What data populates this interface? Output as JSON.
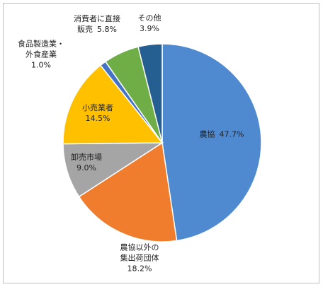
{
  "chart_data": {
    "type": "pie",
    "categories": [
      "農協",
      "農協以外の\n集出荷団体",
      "卸売市場",
      "小売業者",
      "食品製造業・\n外食産業",
      "消費者に直接\n販売",
      "その他"
    ],
    "values": [
      47.7,
      18.2,
      9.0,
      14.5,
      1.0,
      5.8,
      3.9
    ],
    "value_labels": [
      "47.7%",
      "18.2%",
      "9.0%",
      "14.5%",
      "1.0%",
      "5.8%",
      "3.9%"
    ],
    "colors": [
      "#4f8ad0",
      "#ef7d2d",
      "#a5a5a5",
      "#ffc000",
      "#4472c4",
      "#6fae46",
      "#255e91"
    ]
  }
}
